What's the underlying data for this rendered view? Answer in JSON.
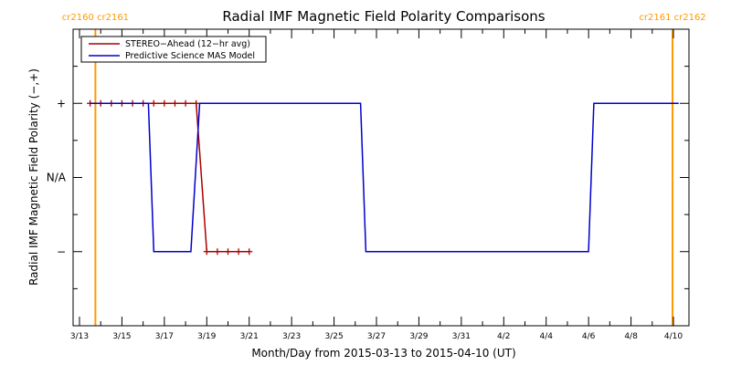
{
  "chart_data": {
    "type": "line",
    "title": "Radial IMF Magnetic Field Polarity Comparisons",
    "xlabel": "Month/Day from 2015-03-13 to 2015-04-10 (UT)",
    "ylabel": "Radial IMF Magnetic Field Polarity (−,+)",
    "x_range": [
      "2015-03-13",
      "2015-04-10"
    ],
    "x_ticks": [
      {
        "date": "2015-03-13",
        "label": "3/13"
      },
      {
        "date": "2015-03-15",
        "label": "3/15"
      },
      {
        "date": "2015-03-17",
        "label": "3/17"
      },
      {
        "date": "2015-03-19",
        "label": "3/19"
      },
      {
        "date": "2015-03-21",
        "label": "3/21"
      },
      {
        "date": "2015-03-23",
        "label": "3/23"
      },
      {
        "date": "2015-03-25",
        "label": "3/25"
      },
      {
        "date": "2015-03-27",
        "label": "3/27"
      },
      {
        "date": "2015-03-29",
        "label": "3/29"
      },
      {
        "date": "2015-03-31",
        "label": "3/31"
      },
      {
        "date": "2015-04-02",
        "label": "4/2"
      },
      {
        "date": "2015-04-04",
        "label": "4/4"
      },
      {
        "date": "2015-04-06",
        "label": "4/6"
      },
      {
        "date": "2015-04-08",
        "label": "4/8"
      },
      {
        "date": "2015-04-10",
        "label": "4/10"
      }
    ],
    "y_categories": [
      {
        "value": 1,
        "label": "+"
      },
      {
        "value": 0,
        "label": "N/A"
      },
      {
        "value": -1,
        "label": "−"
      }
    ],
    "ylim": [
      -2,
      2
    ],
    "carrington_markers": [
      {
        "date": "2015-03-13 18:00",
        "labels": [
          "cr2160",
          "cr2161"
        ]
      },
      {
        "date": "2015-04-09 23:00",
        "labels": [
          "cr2161",
          "cr2162"
        ]
      }
    ],
    "legend_position": "top-left",
    "series": [
      {
        "name": "STEREO−Ahead (12−hr avg)",
        "color": "#aa0000",
        "marker": "plus",
        "x": [
          "2015-03-13 12:00",
          "2015-03-14 00:00",
          "2015-03-14 12:00",
          "2015-03-15 00:00",
          "2015-03-15 12:00",
          "2015-03-16 00:00",
          "2015-03-16 12:00",
          "2015-03-17 00:00",
          "2015-03-17 12:00",
          "2015-03-18 00:00",
          "2015-03-18 12:00",
          "2015-03-19 00:00",
          "2015-03-19 12:00",
          "2015-03-20 00:00",
          "2015-03-20 12:00",
          "2015-03-21 00:00"
        ],
        "values": [
          1,
          1,
          1,
          1,
          1,
          1,
          1,
          1,
          1,
          1,
          1,
          -1,
          -1,
          -1,
          -1,
          -1
        ]
      },
      {
        "name": "Predictive Science MAS Model",
        "color": "#0000cc",
        "x": [
          "2015-03-13 12:00",
          "2015-03-16 06:00",
          "2015-03-16 12:00",
          "2015-03-18 06:00",
          "2015-03-18 16:00",
          "2015-03-26 06:00",
          "2015-03-26 12:00",
          "2015-04-06 00:00",
          "2015-04-06 06:00",
          "2015-04-10 06:00"
        ],
        "values": [
          1,
          1,
          -1,
          -1,
          1,
          1,
          -1,
          -1,
          1,
          1
        ]
      }
    ]
  }
}
